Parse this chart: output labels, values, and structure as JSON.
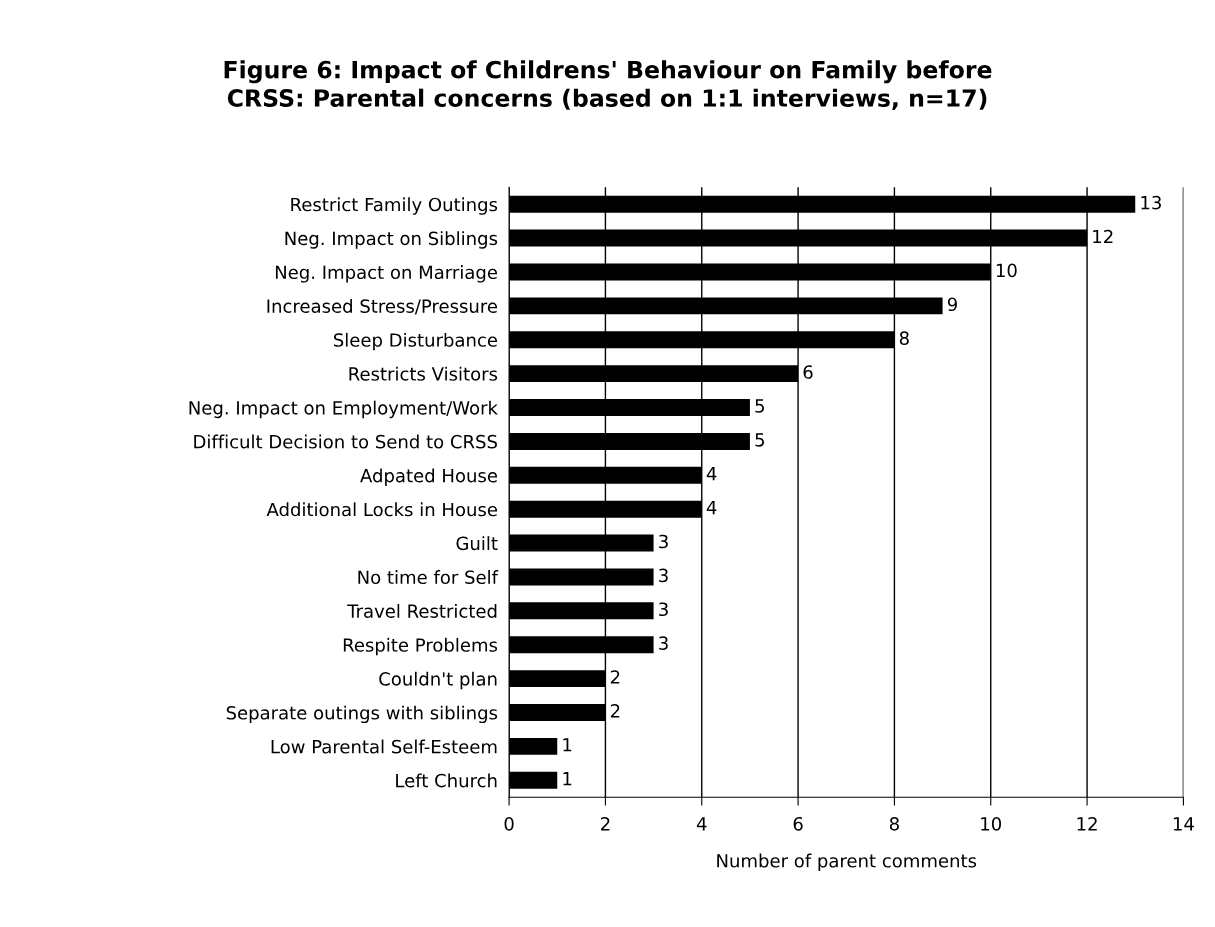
{
  "chart_data": {
    "type": "bar",
    "orientation": "horizontal",
    "title": "Figure 6: Impact of Childrens' Behaviour on Family before\nCRSS: Parental concerns (based on 1:1 interviews, n=17)",
    "xlabel": "Number of parent comments",
    "categories": [
      "Restrict Family Outings",
      "Neg. Impact on Siblings",
      "Neg. Impact on Marriage",
      "Increased Stress/Pressure",
      "Sleep Disturbance",
      "Restricts Visitors",
      "Neg. Impact on Employment/Work",
      "Difficult Decision to Send to CRSS",
      "Adpated House",
      "Additional Locks in House",
      "Guilt",
      "No time for Self",
      "Travel Restricted",
      "Respite Problems",
      "Couldn't plan",
      "Separate outings with siblings",
      "Low Parental Self-Esteem",
      "Left Church"
    ],
    "values": [
      13,
      12,
      10,
      9,
      8,
      6,
      5,
      5,
      4,
      4,
      3,
      3,
      3,
      3,
      2,
      2,
      1,
      1
    ],
    "color": "#000000",
    "xlim": [
      0,
      14
    ],
    "xticks": [
      0,
      2,
      4,
      6,
      8,
      10,
      12,
      14
    ],
    "grid": "x",
    "data_labels": true,
    "legend": false
  }
}
